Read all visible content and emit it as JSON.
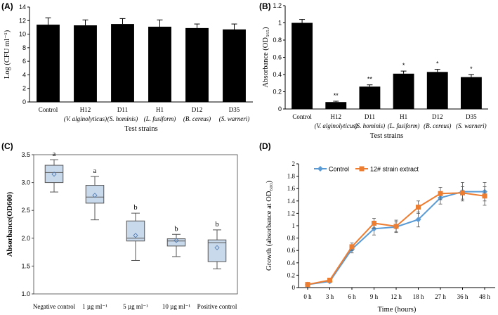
{
  "chart_data": [
    {
      "panel": "(A)",
      "type": "bar",
      "categories": [
        "Control",
        "H12",
        "D11",
        "H1",
        "D12",
        "D35"
      ],
      "species": [
        "",
        "(V. alginolyticus)",
        "(S. hominis)",
        "(L. fusiform)",
        "(B. cereus)",
        "(S. warneri)"
      ],
      "values": [
        11.4,
        11.3,
        11.5,
        11.1,
        10.9,
        10.7
      ],
      "errors": [
        1.0,
        0.8,
        0.8,
        1.0,
        0.6,
        0.8
      ],
      "ylabel": "Log (CFU ml⁻¹)",
      "xlabel": "Test strains",
      "ylim": [
        0,
        14
      ],
      "yticks": [
        "0",
        "2",
        "4",
        "6",
        "8",
        "10",
        "12",
        "14"
      ],
      "color": "#000000"
    },
    {
      "panel": "(B)",
      "type": "bar",
      "categories": [
        "Control",
        "H12",
        "D11",
        "H1",
        "D12",
        "D35"
      ],
      "species": [
        "",
        "(V. alginolyticus)",
        "(S. hominis)",
        "(L. fusiform)",
        "(B. cereus)",
        "(S. warneri)"
      ],
      "values": [
        1.0,
        0.08,
        0.26,
        0.41,
        0.43,
        0.37
      ],
      "errors": [
        0.04,
        0.01,
        0.02,
        0.03,
        0.03,
        0.03
      ],
      "significance": [
        "",
        "**",
        "**",
        "*",
        "*",
        "*"
      ],
      "ylabel": "Absorbance (OD₅₆₅)",
      "xlabel": "Test strains",
      "ylim": [
        0,
        1.2
      ],
      "yticks": [
        "0",
        "0.2",
        "0.4",
        "0.6",
        "0.8",
        "1",
        "1.2"
      ],
      "color": "#000000"
    },
    {
      "panel": "(C)",
      "type": "box",
      "categories": [
        "Negative control",
        "1 µg ml⁻¹",
        "5 µg ml⁻¹",
        "10 µg ml⁻¹",
        "Positive control"
      ],
      "boxes": [
        {
          "min": 2.83,
          "q1": 3.0,
          "median": 3.18,
          "q3": 3.31,
          "max": 3.41,
          "mean": 3.15,
          "letter": "a"
        },
        {
          "min": 2.33,
          "q1": 2.63,
          "median": 2.74,
          "q3": 2.95,
          "max": 3.11,
          "mean": 2.77,
          "letter": "a"
        },
        {
          "min": 1.6,
          "q1": 1.95,
          "median": 2.0,
          "q3": 2.31,
          "max": 2.45,
          "mean": 2.05,
          "letter": "b"
        },
        {
          "min": 1.67,
          "q1": 1.86,
          "median": 1.95,
          "q3": 1.99,
          "max": 2.07,
          "mean": 1.96,
          "letter": "b"
        },
        {
          "min": 1.45,
          "q1": 1.58,
          "median": 1.92,
          "q3": 1.97,
          "max": 2.15,
          "mean": 1.83,
          "letter": "b"
        }
      ],
      "ylabel": "Absorbance(OD600)",
      "ylim": [
        1.0,
        3.5
      ],
      "yticks": [
        "1.0",
        "1.5",
        "2.0",
        "2.5",
        "3.0",
        "3.5"
      ],
      "box_color": "#c9d9ec"
    },
    {
      "panel": "(D)",
      "type": "line",
      "x": [
        "0 h",
        "3 h",
        "6 h",
        "9 h",
        "12 h",
        "18 h",
        "27 h",
        "36 h",
        "48 h"
      ],
      "series": [
        {
          "name": "Control",
          "values": [
            0.05,
            0.1,
            0.62,
            0.95,
            0.98,
            1.1,
            1.45,
            1.55,
            1.55
          ],
          "errors": [
            0.02,
            0.02,
            0.06,
            0.1,
            0.08,
            0.12,
            0.1,
            0.15,
            0.15
          ],
          "color": "#5b9bd5"
        },
        {
          "name": "12# strain extract",
          "values": [
            0.05,
            0.12,
            0.66,
            1.04,
            0.99,
            1.3,
            1.52,
            1.53,
            1.48
          ],
          "errors": [
            0.02,
            0.02,
            0.06,
            0.08,
            0.1,
            0.1,
            0.1,
            0.1,
            0.15
          ],
          "color": "#ed7d31"
        }
      ],
      "ylabel": "Growth (absorbance at OD₆₀₀)",
      "xlabel": "Time (hours)",
      "ylim": [
        0,
        2
      ],
      "yticks": [
        "0",
        "0.2",
        "0.4",
        "0.6",
        "0.8",
        "1",
        "1.2",
        "1.4",
        "1.6",
        "1.8",
        "2"
      ]
    }
  ]
}
